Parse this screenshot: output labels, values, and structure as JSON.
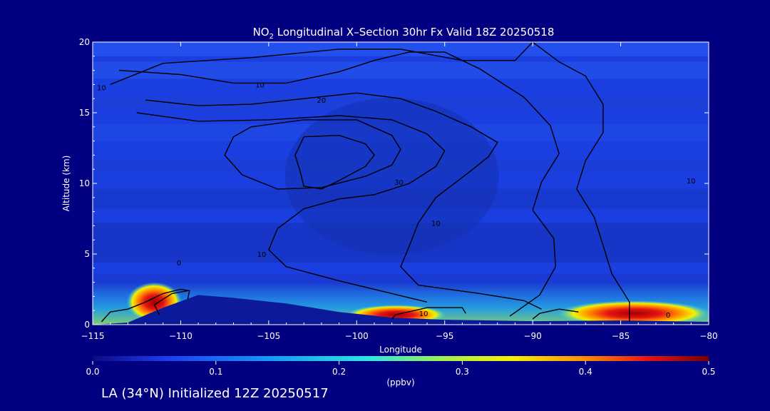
{
  "chart_data": {
    "type": "heatmap",
    "title_main": "NO",
    "title_subscript": "2",
    "title_rest": " Longitudinal X–Section 30hr  Fx Valid 18Z 20250518",
    "xlabel": "Longitude",
    "ylabel": "Altitude (km)",
    "xlim": [
      -115,
      -80
    ],
    "ylim": [
      0,
      20
    ],
    "xticks": [
      -115,
      -110,
      -105,
      -100,
      -95,
      -90,
      -85,
      -80
    ],
    "xtick_labels": [
      "−115",
      "−110",
      "−105",
      "−100",
      "−95",
      "−90",
      "−85",
      "−80"
    ],
    "yticks": [
      0,
      5,
      10,
      15,
      20
    ],
    "ytick_labels": [
      "0",
      "5",
      "10",
      "15",
      "20"
    ],
    "colorbar": {
      "min": 0.0,
      "max": 0.5,
      "ticks": [
        0.0,
        0.1,
        0.2,
        0.3,
        0.4,
        0.5
      ],
      "tick_labels": [
        "0.0",
        "0.1",
        "0.2",
        "0.3",
        "0.4",
        "0.5"
      ],
      "label": "(ppbv)",
      "colors": [
        "#0a0a80",
        "#1e3cf0",
        "#14a0f5",
        "#2ee6e0",
        "#a0f050",
        "#f5f000",
        "#ff8c00",
        "#e61414",
        "#780000"
      ]
    },
    "terrain": [
      {
        "lon": -115,
        "alt": 0.0
      },
      {
        "lon": -113,
        "alt": 0.15
      },
      {
        "lon": -111,
        "alt": 1.2
      },
      {
        "lon": -109,
        "alt": 2.1
      },
      {
        "lon": -107,
        "alt": 1.9
      },
      {
        "lon": -104,
        "alt": 1.5
      },
      {
        "lon": -101,
        "alt": 0.9
      },
      {
        "lon": -98,
        "alt": 0.5
      },
      {
        "lon": -95,
        "alt": 0.35
      },
      {
        "lon": -90,
        "alt": 0.25
      },
      {
        "lon": -85,
        "alt": 0.3
      },
      {
        "lon": -80,
        "alt": 0.2
      }
    ],
    "hotspots": [
      {
        "lon_range": [
          -112.5,
          -110.5
        ],
        "alt_range": [
          0.6,
          2.6
        ],
        "value": 0.45
      },
      {
        "lon_range": [
          -100,
          -95.5
        ],
        "alt_range": [
          0.4,
          1.0
        ],
        "value": 0.4
      },
      {
        "lon_range": [
          -88,
          -80.5
        ],
        "alt_range": [
          0.3,
          1.3
        ],
        "value": 0.42
      }
    ],
    "contour_level_labels": [
      {
        "lon": -114.5,
        "alt": 16.6,
        "text": "10"
      },
      {
        "lon": -105.5,
        "alt": 16.8,
        "text": "10"
      },
      {
        "lon": -102.0,
        "alt": 15.7,
        "text": "20"
      },
      {
        "lon": -97.6,
        "alt": 9.9,
        "text": "30"
      },
      {
        "lon": -95.5,
        "alt": 7.0,
        "text": "10"
      },
      {
        "lon": -81.0,
        "alt": 10.0,
        "text": "10"
      },
      {
        "lon": -110.1,
        "alt": 4.2,
        "text": "0"
      },
      {
        "lon": -105.4,
        "alt": 4.8,
        "text": "10"
      },
      {
        "lon": -96.2,
        "alt": 0.6,
        "text": "10"
      },
      {
        "lon": -82.3,
        "alt": 0.5,
        "text": "0"
      }
    ],
    "contours": [
      [
        [
          -114,
          17
        ],
        [
          -111,
          18.5
        ],
        [
          -106,
          18.9
        ],
        [
          -101,
          19.5
        ],
        [
          -97.5,
          19.5
        ],
        [
          -94,
          18.7
        ],
        [
          -91,
          18.7
        ],
        [
          -90,
          20
        ],
        [
          -88.5,
          18.6
        ],
        [
          -87,
          17.6
        ],
        [
          -86,
          15.6
        ],
        [
          -86,
          13.6
        ],
        [
          -87,
          11.6
        ],
        [
          -87.5,
          9.6
        ],
        [
          -86.5,
          7.6
        ],
        [
          -86,
          5.6
        ],
        [
          -85.5,
          3.6
        ],
        [
          -84.5,
          1.6
        ],
        [
          -84.5,
          0.2
        ]
      ],
      [
        [
          -113.5,
          18
        ],
        [
          -110,
          17.7
        ],
        [
          -107,
          17.1
        ],
        [
          -104,
          17.1
        ],
        [
          -101,
          17.9
        ],
        [
          -99,
          18.7
        ],
        [
          -97,
          19.3
        ],
        [
          -95,
          19.3
        ],
        [
          -93,
          18.1
        ],
        [
          -90.5,
          16.1
        ],
        [
          -89,
          14.1
        ],
        [
          -88.5,
          12.1
        ],
        [
          -89.5,
          10.1
        ],
        [
          -90,
          8.1
        ],
        [
          -88.8,
          6.1
        ],
        [
          -88.7,
          4.1
        ],
        [
          -89.6,
          2.1
        ],
        [
          -91.3,
          0.6
        ]
      ],
      [
        [
          -112,
          15.9
        ],
        [
          -109,
          15.5
        ],
        [
          -106,
          15.6
        ],
        [
          -103,
          16.0
        ],
        [
          -100,
          16.4
        ],
        [
          -97.5,
          16.0
        ],
        [
          -95.5,
          15.1
        ],
        [
          -93.5,
          14.0
        ],
        [
          -92,
          12.9
        ],
        [
          -92.5,
          11.9
        ],
        [
          -93.5,
          10.9
        ],
        [
          -95.5,
          9.0
        ],
        [
          -96.5,
          7.2
        ],
        [
          -97,
          5.6
        ],
        [
          -97.5,
          4.1
        ],
        [
          -96.5,
          2.8
        ],
        [
          -93,
          2.2
        ],
        [
          -90.5,
          1.7
        ],
        [
          -89.5,
          1.1
        ]
      ],
      [
        [
          -112.5,
          15.0
        ],
        [
          -109,
          14.4
        ],
        [
          -105,
          14.5
        ],
        [
          -101,
          14.8
        ],
        [
          -98,
          14.5
        ],
        [
          -96,
          13.5
        ],
        [
          -95,
          12.3
        ],
        [
          -95.5,
          11.2
        ],
        [
          -97,
          10.0
        ],
        [
          -99,
          9.2
        ],
        [
          -101,
          8.9
        ],
        [
          -103,
          8.2
        ],
        [
          -104.5,
          6.8
        ],
        [
          -105,
          5.3
        ],
        [
          -104,
          4.1
        ],
        [
          -101,
          3.1
        ],
        [
          -98,
          2.2
        ],
        [
          -96,
          1.6
        ]
      ],
      [
        [
          -106,
          14.0
        ],
        [
          -103,
          14.5
        ],
        [
          -100,
          14.5
        ],
        [
          -98,
          13.4
        ],
        [
          -97.5,
          12.4
        ],
        [
          -98,
          11.3
        ],
        [
          -99.5,
          10.5
        ],
        [
          -102,
          9.7
        ],
        [
          -104.5,
          9.6
        ],
        [
          -106.5,
          10.6
        ],
        [
          -107.5,
          12.0
        ],
        [
          -107,
          13.3
        ],
        [
          -106,
          14.0
        ]
      ],
      [
        [
          -103,
          13.3
        ],
        [
          -101,
          13.4
        ],
        [
          -99.5,
          12.8
        ],
        [
          -99,
          12.0
        ],
        [
          -99.5,
          11.2
        ],
        [
          -101,
          10.2
        ],
        [
          -102,
          9.6
        ],
        [
          -103,
          9.8
        ],
        [
          -103.2,
          10.8
        ],
        [
          -103.5,
          12.0
        ],
        [
          -103,
          13.3
        ]
      ],
      [
        [
          -114.5,
          0.2
        ],
        [
          -114,
          0.9
        ],
        [
          -113,
          1.1
        ],
        [
          -112,
          1.6
        ],
        [
          -111,
          2.2
        ],
        [
          -110,
          2.5
        ],
        [
          -109.5,
          2.4
        ],
        [
          -109.6,
          1.8
        ]
      ],
      [
        [
          -111.2,
          0.7
        ],
        [
          -111.5,
          1.4
        ],
        [
          -110.5,
          2.2
        ],
        [
          -109.6,
          2.4
        ]
      ],
      [
        [
          -98,
          0.4
        ],
        [
          -97.8,
          0.7
        ],
        [
          -96,
          1.2
        ],
        [
          -94,
          1.2
        ],
        [
          -93.8,
          0.8
        ]
      ],
      [
        [
          -90,
          0.4
        ],
        [
          -89.6,
          0.8
        ],
        [
          -88.5,
          1.1
        ],
        [
          -87.4,
          0.9
        ]
      ]
    ]
  },
  "footer": {
    "text": "LA (34°N) Initialized 12Z 20250517"
  }
}
